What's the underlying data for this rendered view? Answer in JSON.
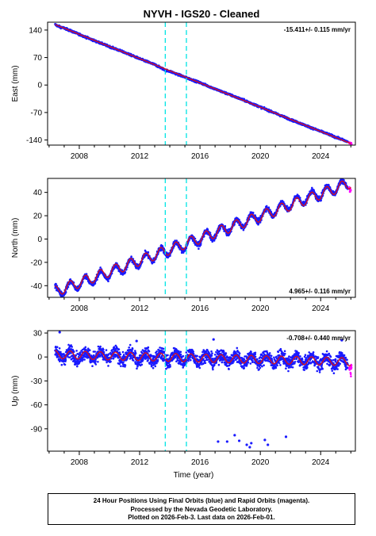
{
  "title": "NYVH  - IGS20 - Cleaned",
  "footer": {
    "line1": "24 Hour Positions Using Final Orbits (blue) and Rapid Orbits (magenta).",
    "line2": "Processed by the Nevada Geodetic Laboratory.",
    "line3": "Plotted on 2026-Feb-3. Last data on 2026-Feb-01."
  },
  "colors": {
    "final_orbits": "#1a1aff",
    "rapid_orbits": "#ff00ff",
    "model_fit": "#dd1111",
    "event_lines": "#00e5e5"
  },
  "chart_data": [
    {
      "type": "scatter",
      "panel": "east",
      "ylabel": "East (mm)",
      "xlabel": "",
      "xlim": [
        2005.9,
        2026.3
      ],
      "ylim": [
        -153,
        160
      ],
      "yticks": [
        140,
        70,
        0,
        -70,
        -140
      ],
      "xticks": [
        2008,
        2012,
        2016,
        2020,
        2024
      ],
      "xticklabels": [
        "2008",
        "2012",
        "2016",
        "2020",
        "2024"
      ],
      "rate_label": "-15.411+/- 0.115 mm/yr",
      "rate_position": "top-right",
      "vertical_lines": [
        2013.7,
        2015.1
      ],
      "series": [
        {
          "role": "final",
          "x": [
            2006.4,
            2006.5,
            2006.6,
            2006.8,
            2007.0,
            2007.5,
            2008.0,
            2009.0,
            2010.0,
            2011.0,
            2012.0,
            2013.0,
            2013.7,
            2014.0,
            2015.0,
            2016.0,
            2017.0,
            2018.0,
            2019.0,
            2020.0,
            2021.0,
            2022.0,
            2023.0,
            2024.0,
            2024.5,
            2025.0,
            2025.5,
            2025.8
          ],
          "y": [
            154,
            152,
            150,
            147,
            145,
            137,
            129,
            113,
            98,
            83,
            67,
            52,
            38,
            35,
            20,
            6,
            -10,
            -25,
            -40,
            -56,
            -72,
            -88,
            -103,
            -118,
            -125,
            -133,
            -140,
            -145
          ]
        },
        {
          "role": "rapid",
          "x": [
            2025.9,
            2026.0,
            2026.05
          ],
          "y": [
            -147,
            -149,
            -151
          ]
        },
        {
          "role": "model",
          "x": [
            2006.4,
            2013.7,
            2026.0
          ],
          "y": [
            154,
            41,
            -149
          ]
        }
      ]
    },
    {
      "type": "scatter",
      "panel": "north",
      "ylabel": "North (mm)",
      "xlabel": "",
      "xlim": [
        2005.9,
        2026.3
      ],
      "ylim": [
        -50,
        52
      ],
      "yticks": [
        40,
        20,
        0,
        -20,
        -40
      ],
      "xticks": [
        2008,
        2012,
        2016,
        2020,
        2024
      ],
      "xticklabels": [
        "2008",
        "2012",
        "2016",
        "2020",
        "2024"
      ],
      "rate_label": "4.965+/- 0.116 mm/yr",
      "rate_position": "bottom-right",
      "vertical_lines": [
        2013.7,
        2015.1
      ],
      "seasonal_amplitude": 4.5,
      "series": [
        {
          "role": "final",
          "x": [
            2006.4,
            2007.0,
            2008.0,
            2009.0,
            2010.0,
            2011.0,
            2012.0,
            2013.0,
            2014.0,
            2015.0,
            2016.0,
            2017.0,
            2018.0,
            2019.0,
            2020.0,
            2021.0,
            2022.0,
            2023.0,
            2024.0,
            2025.0,
            2025.8
          ],
          "y": [
            -45,
            -43,
            -38,
            -34,
            -29,
            -24,
            -19,
            -14,
            -9,
            -5,
            0,
            5,
            10,
            15,
            20,
            25,
            30,
            35,
            39,
            44,
            47
          ]
        },
        {
          "role": "rapid",
          "x": [
            2025.9,
            2026.0
          ],
          "y": [
            48,
            46
          ]
        },
        {
          "role": "model",
          "x": [
            2006.4,
            2026.0
          ],
          "y": [
            -45,
            48
          ]
        }
      ]
    },
    {
      "type": "scatter",
      "panel": "up",
      "ylabel": "Up (mm)",
      "xlabel": "Time (year)",
      "xlim": [
        2005.9,
        2026.3
      ],
      "ylim": [
        -118,
        33
      ],
      "yticks": [
        30,
        0,
        -30,
        -60,
        -90
      ],
      "xticks": [
        2008,
        2012,
        2016,
        2020,
        2024
      ],
      "xticklabels": [
        "2008",
        "2012",
        "2016",
        "2020",
        "2024"
      ],
      "rate_label": "-0.708+/- 0.440 mm/yr",
      "rate_position": "top-right",
      "vertical_lines": [
        2013.7,
        2015.1
      ],
      "seasonal_amplitude": 5,
      "series": [
        {
          "role": "final",
          "x": [
            2006.4,
            2008.0,
            2010.0,
            2012.0,
            2014.0,
            2016.0,
            2018.0,
            2020.0,
            2022.0,
            2024.0,
            2025.8
          ],
          "y": [
            3,
            2,
            1,
            0,
            -1,
            -1,
            -2,
            -3,
            -4,
            -5,
            -6
          ]
        },
        {
          "role": "final_outliers",
          "x": [
            2017.2,
            2017.8,
            2018.3,
            2018.6,
            2019.1,
            2019.3,
            2019.4,
            2020.3,
            2020.5,
            2021.7
          ],
          "y": [
            -106,
            -106,
            -98,
            -105,
            -110,
            -113,
            -108,
            -104,
            -110,
            -100
          ]
        },
        {
          "role": "final_outliers_high",
          "x": [
            2006.7,
            2011.8,
            2016.9,
            2025.4
          ],
          "y": [
            31,
            20,
            22,
            21
          ]
        },
        {
          "role": "rapid",
          "x": [
            2025.9,
            2026.0,
            2026.05
          ],
          "y": [
            -8,
            -12,
            -10
          ]
        },
        {
          "role": "model",
          "x": [
            2006.4,
            2026.0
          ],
          "y": [
            3,
            -6
          ]
        }
      ]
    }
  ]
}
